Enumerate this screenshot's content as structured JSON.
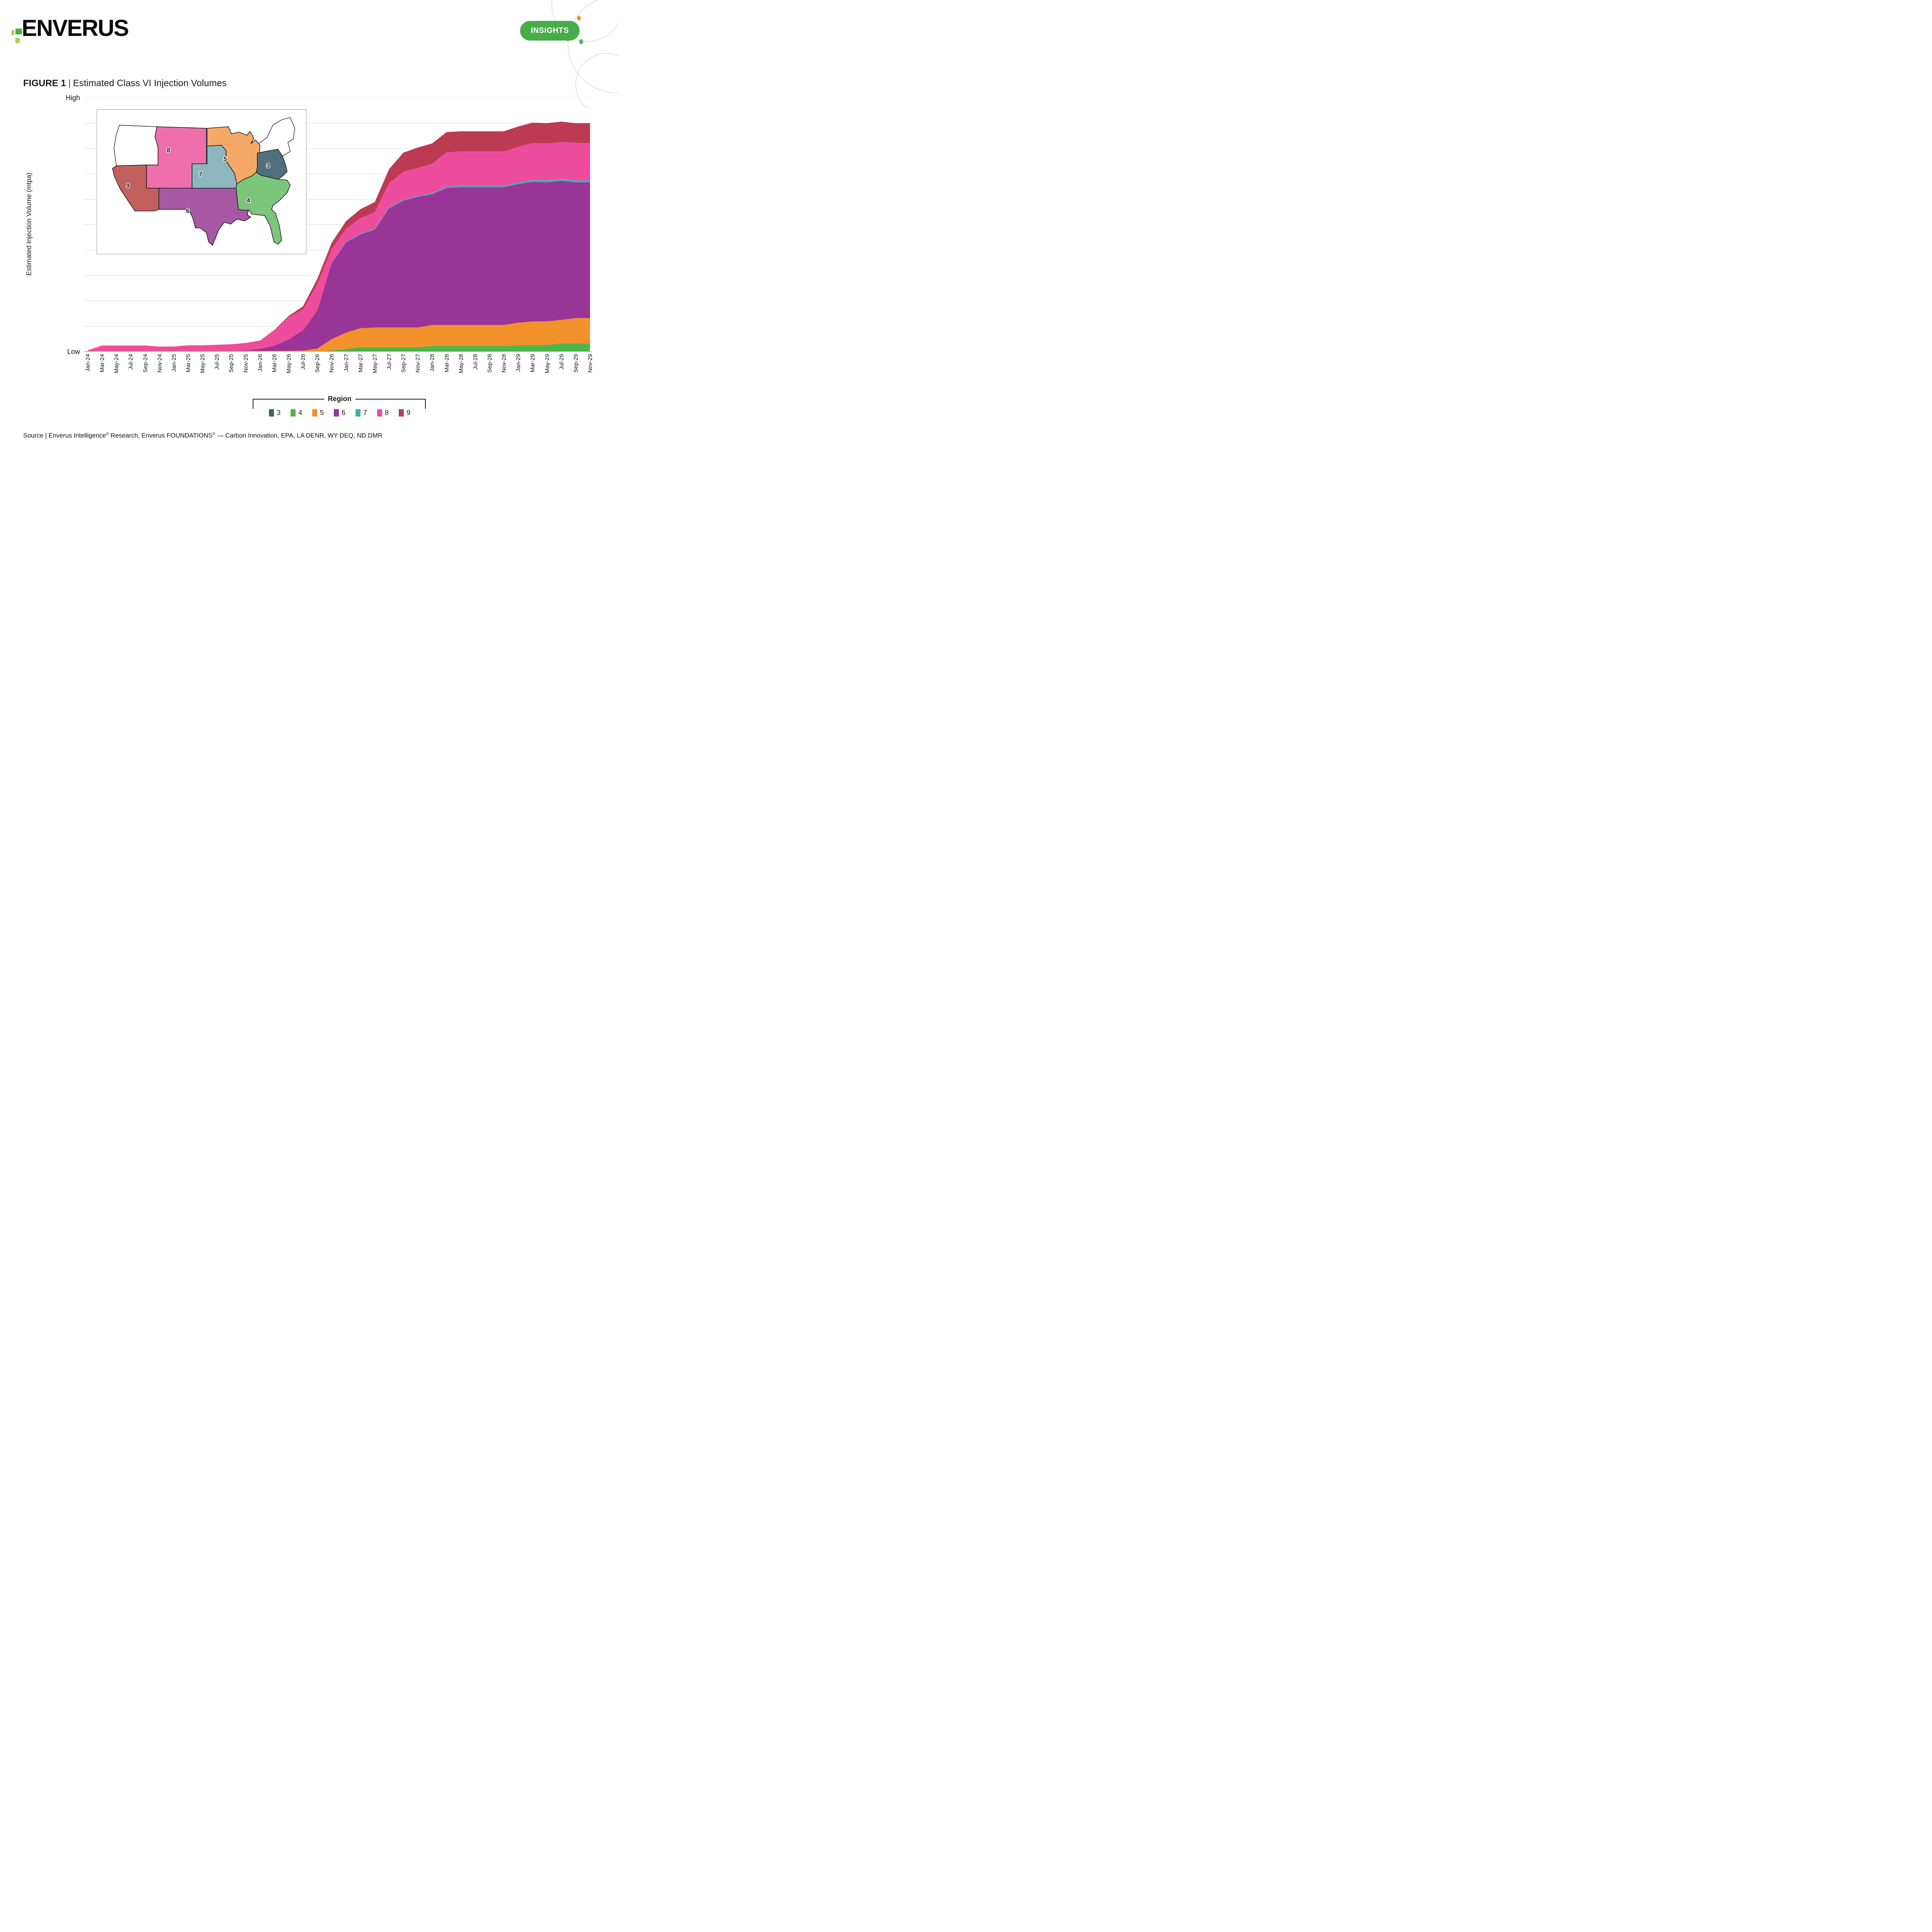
{
  "header": {
    "logo_text": "ENVERUS",
    "insights_label": "INSIGHTS",
    "insights_bg": "#47ad49"
  },
  "figure": {
    "label": "FIGURE 1",
    "separator": "|",
    "title": "Estimated Class VI Injection Volumes"
  },
  "axes": {
    "y_title": "Estimated Injection Volume (mtpa)",
    "y_top_label": "High",
    "y_bottom_label": "Low"
  },
  "legend": {
    "title": "Region",
    "items": [
      {
        "label": "3",
        "color": "#3A646D"
      },
      {
        "label": "4",
        "color": "#4CB648"
      },
      {
        "label": "5",
        "color": "#F3912C"
      },
      {
        "label": "6",
        "color": "#9A3598"
      },
      {
        "label": "7",
        "color": "#4BA9B4"
      },
      {
        "label": "8",
        "color": "#EE4C9C"
      },
      {
        "label": "9",
        "color": "#BC3B52"
      }
    ]
  },
  "map": {
    "labels": [
      {
        "text": "8"
      },
      {
        "text": "5"
      },
      {
        "text": "7"
      },
      {
        "text": "9"
      },
      {
        "text": "6"
      },
      {
        "text": "4"
      },
      {
        "text": "3"
      }
    ],
    "region_fills": {
      "3": "#50707E",
      "4": "#7CC67B",
      "5": "#F5A968",
      "6": "#A658A3",
      "7": "#8CB7BF",
      "8": "#EF6FAC",
      "9": "#C2605D"
    }
  },
  "source": {
    "p1": "Source | Enverus Intelligence",
    "r1": "®",
    "p2": " Research, Enverus FOUNDATIONS",
    "r2": "®",
    "p3": " — Carbon Innovation, EPA, LA DENR, WY DEQ, ND DMR"
  },
  "chart_data": {
    "type": "area",
    "stacked": true,
    "title": "Estimated Class VI Injection Volumes",
    "xlabel": "",
    "ylabel": "Estimated Injection Volume (mtpa)",
    "y_axis_labels": {
      "top": "High",
      "bottom": "Low"
    },
    "ylim": [
      0,
      100
    ],
    "grid": "horizontal",
    "gridline_step": 10,
    "legend_position": "bottom",
    "units": "relative scale, Low=0 High=100",
    "categories": [
      "Jan-24",
      "Mar-24",
      "May-24",
      "Jul-24",
      "Sep-24",
      "Nov-24",
      "Jan-25",
      "Mar-25",
      "May-25",
      "Jul-25",
      "Sep-25",
      "Nov-25",
      "Jan-26",
      "Mar-26",
      "May-26",
      "Jul-26",
      "Sep-26",
      "Nov-26",
      "Jan-27",
      "Mar-27",
      "May-27",
      "Jul-27",
      "Sep-27",
      "Nov-27",
      "Jan-28",
      "Mar-28",
      "May-28",
      "Jul-28",
      "Sep-28",
      "Nov-28",
      "Jan-29",
      "Mar-29",
      "May-29",
      "Jul-29",
      "Sep-29",
      "Nov-29"
    ],
    "series": [
      {
        "name": "3",
        "color": "#3A646D",
        "values": [
          0,
          0,
          0,
          0,
          0,
          0,
          0,
          0,
          0,
          0,
          0,
          0,
          0,
          0,
          0,
          0,
          0,
          0,
          0,
          0,
          0,
          0,
          0,
          0,
          0,
          0,
          0,
          0,
          0,
          0,
          0,
          0,
          0,
          0,
          0,
          0
        ]
      },
      {
        "name": "4",
        "color": "#4CB648",
        "values": [
          0,
          0,
          0,
          0,
          0,
          0,
          0,
          0,
          0,
          0,
          0,
          0,
          0,
          0,
          0,
          0,
          0,
          0.4,
          1,
          1.7,
          1.7,
          1.7,
          1.7,
          1.7,
          2.2,
          2.2,
          2.2,
          2.2,
          2.2,
          2.2,
          2.6,
          2.6,
          2.6,
          3.2,
          3.2,
          3.2
        ]
      },
      {
        "name": "5",
        "color": "#F3912C",
        "values": [
          0.2,
          0.25,
          0.25,
          0.25,
          0.25,
          0.25,
          0.25,
          0.25,
          0.25,
          0.25,
          0.25,
          0.25,
          0.3,
          0.3,
          0.3,
          0.4,
          1.2,
          4.5,
          6.5,
          7.5,
          7.8,
          7.8,
          7.8,
          7.8,
          8.3,
          8.3,
          8.3,
          8.3,
          8.3,
          8.3,
          8.8,
          9.3,
          9.3,
          9.3,
          10,
          10
        ]
      },
      {
        "name": "6",
        "color": "#9A3598",
        "values": [
          0,
          0,
          0,
          0,
          0,
          0,
          0,
          0,
          0,
          0,
          0,
          0.2,
          0.8,
          2,
          4.5,
          8,
          15,
          30,
          35.5,
          37,
          38.5,
          47,
          50,
          51.5,
          51.5,
          54,
          54.3,
          54.3,
          54.3,
          54.3,
          54.6,
          55,
          54.8,
          54.8,
          53.5,
          53.5
        ]
      },
      {
        "name": "7",
        "color": "#4BA9B4",
        "values": [
          0,
          0,
          0,
          0,
          0,
          0,
          0,
          0,
          0,
          0,
          0,
          0,
          0,
          0,
          0,
          0,
          0,
          0,
          0.4,
          0.4,
          0.4,
          0.4,
          0.4,
          0.4,
          0.5,
          0.5,
          0.5,
          0.5,
          0.5,
          0.5,
          0.7,
          0.8,
          0.8,
          0.8,
          0.8,
          0.8
        ]
      },
      {
        "name": "8",
        "color": "#EE4C9C",
        "values": [
          0.3,
          2.15,
          2.15,
          2.15,
          2.15,
          1.75,
          1.75,
          2.25,
          2.25,
          2.45,
          2.65,
          2.95,
          3.25,
          6,
          8.75,
          8.25,
          10.5,
          5.5,
          5,
          6,
          6.5,
          9.5,
          11,
          11,
          11.5,
          13.5,
          13.5,
          13.5,
          13.5,
          13.5,
          14,
          14.5,
          14.5,
          14.5,
          14.7,
          14.7
        ]
      },
      {
        "name": "9",
        "color": "#BC3B52",
        "values": [
          0,
          0,
          0,
          0,
          0,
          0,
          0,
          0,
          0,
          0,
          0,
          0,
          0,
          0.2,
          0.5,
          1.2,
          2,
          2.5,
          3,
          3.5,
          4,
          5.5,
          7.5,
          8,
          8,
          8,
          8,
          8,
          8,
          8,
          8,
          8,
          8,
          8,
          7.8,
          7.8
        ]
      }
    ]
  }
}
